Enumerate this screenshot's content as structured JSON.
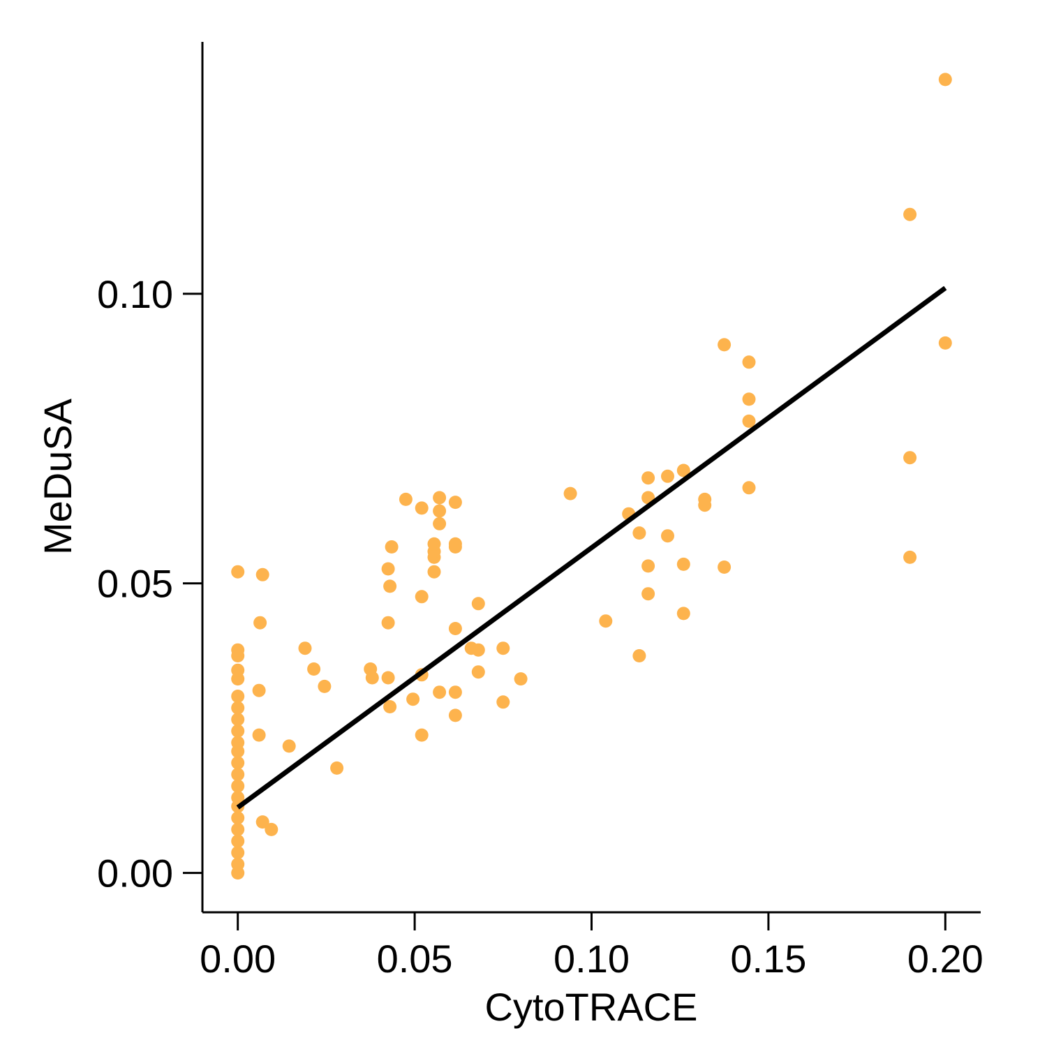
{
  "chart_data": {
    "type": "scatter",
    "title": "",
    "xlabel": "CytoTRACE",
    "ylabel": "MeDuSA",
    "xlim": [
      -0.01,
      0.21
    ],
    "ylim": [
      -0.0068,
      0.1435
    ],
    "xticks": [
      "0.00",
      "0.05",
      "0.10",
      "0.15",
      "0.20"
    ],
    "yticks": [
      "0.00",
      "0.05",
      "0.10"
    ],
    "grid": false,
    "legend": "none",
    "point_color": "#FDB34D",
    "line_color": "#000000",
    "points": [
      [
        0.0,
        0.0
      ],
      [
        0.0,
        0.0015
      ],
      [
        0.0,
        0.0035
      ],
      [
        0.0,
        0.0055
      ],
      [
        0.0,
        0.0075
      ],
      [
        0.0,
        0.0095
      ],
      [
        0.0,
        0.0115
      ],
      [
        0.0,
        0.013
      ],
      [
        0.0,
        0.015
      ],
      [
        0.0,
        0.017
      ],
      [
        0.0,
        0.019
      ],
      [
        0.0,
        0.021
      ],
      [
        0.0,
        0.0225
      ],
      [
        0.0,
        0.0245
      ],
      [
        0.0,
        0.0265
      ],
      [
        0.0,
        0.0285
      ],
      [
        0.0,
        0.0305
      ],
      [
        0.0,
        0.0335
      ],
      [
        0.0,
        0.035
      ],
      [
        0.0,
        0.0375
      ],
      [
        0.0,
        0.0385
      ],
      [
        0.0,
        0.052
      ],
      [
        0.006,
        0.0315
      ],
      [
        0.006,
        0.0238
      ],
      [
        0.0063,
        0.0432
      ],
      [
        0.007,
        0.0088
      ],
      [
        0.007,
        0.0515
      ],
      [
        0.0095,
        0.0075
      ],
      [
        0.0145,
        0.0219
      ],
      [
        0.019,
        0.0388
      ],
      [
        0.0215,
        0.0352
      ],
      [
        0.0245,
        0.0322
      ],
      [
        0.028,
        0.0181
      ],
      [
        0.0375,
        0.0352
      ],
      [
        0.038,
        0.0337
      ],
      [
        0.0425,
        0.0337
      ],
      [
        0.0425,
        0.0432
      ],
      [
        0.0425,
        0.0525
      ],
      [
        0.043,
        0.0287
      ],
      [
        0.043,
        0.0495
      ],
      [
        0.0435,
        0.0563
      ],
      [
        0.0475,
        0.0645
      ],
      [
        0.0495,
        0.03
      ],
      [
        0.052,
        0.0238
      ],
      [
        0.052,
        0.0342
      ],
      [
        0.052,
        0.0477
      ],
      [
        0.052,
        0.063
      ],
      [
        0.0555,
        0.052
      ],
      [
        0.0555,
        0.0545
      ],
      [
        0.0555,
        0.0555
      ],
      [
        0.0555,
        0.0568
      ],
      [
        0.057,
        0.0312
      ],
      [
        0.057,
        0.0603
      ],
      [
        0.057,
        0.0625
      ],
      [
        0.057,
        0.0648
      ],
      [
        0.0615,
        0.0272
      ],
      [
        0.0615,
        0.0312
      ],
      [
        0.0615,
        0.0422
      ],
      [
        0.0615,
        0.0563
      ],
      [
        0.0615,
        0.0568
      ],
      [
        0.0615,
        0.064
      ],
      [
        0.066,
        0.0388
      ],
      [
        0.068,
        0.0347
      ],
      [
        0.068,
        0.0385
      ],
      [
        0.068,
        0.0465
      ],
      [
        0.075,
        0.0295
      ],
      [
        0.075,
        0.0388
      ],
      [
        0.08,
        0.0335
      ],
      [
        0.094,
        0.0655
      ],
      [
        0.104,
        0.0435
      ],
      [
        0.1105,
        0.062
      ],
      [
        0.1135,
        0.0375
      ],
      [
        0.1135,
        0.0587
      ],
      [
        0.116,
        0.0482
      ],
      [
        0.116,
        0.053
      ],
      [
        0.116,
        0.0648
      ],
      [
        0.116,
        0.0682
      ],
      [
        0.1215,
        0.0582
      ],
      [
        0.1215,
        0.0685
      ],
      [
        0.126,
        0.0448
      ],
      [
        0.126,
        0.0533
      ],
      [
        0.126,
        0.0695
      ],
      [
        0.132,
        0.0635
      ],
      [
        0.132,
        0.0645
      ],
      [
        0.1375,
        0.0528
      ],
      [
        0.1375,
        0.0912
      ],
      [
        0.1445,
        0.0665
      ],
      [
        0.1445,
        0.078
      ],
      [
        0.1445,
        0.0818
      ],
      [
        0.1445,
        0.0882
      ],
      [
        0.19,
        0.0545
      ],
      [
        0.19,
        0.0717
      ],
      [
        0.19,
        0.1137
      ],
      [
        0.2,
        0.0915
      ],
      [
        0.2,
        0.137
      ]
    ],
    "fit_line": [
      [
        0.0,
        0.0113
      ],
      [
        0.2,
        0.101
      ]
    ]
  }
}
